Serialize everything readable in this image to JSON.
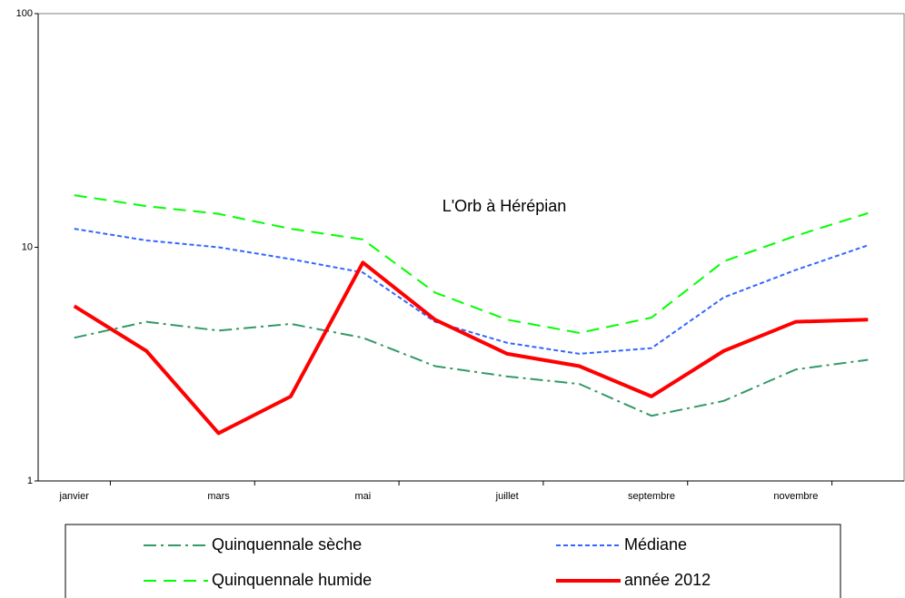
{
  "chart_data": {
    "type": "line",
    "title": "L'Orb à Hérépian",
    "categories": [
      "janvier",
      null,
      "mars",
      null,
      "mai",
      null,
      "juillet",
      null,
      "septembre",
      null,
      "novembre",
      null
    ],
    "log_scale": true,
    "ylim": [
      1,
      100
    ],
    "yticks": [
      1,
      10,
      100
    ],
    "grid": false,
    "series": [
      {
        "name": "Quinquennale sèche",
        "color": "#339966",
        "values": [
          4.1,
          4.8,
          4.4,
          4.7,
          4.1,
          3.1,
          2.8,
          2.6,
          1.9,
          2.2,
          3.0,
          3.3
        ]
      },
      {
        "name": "Médiane",
        "color": "#3366ff",
        "values": [
          12.0,
          10.7,
          10.0,
          8.9,
          7.8,
          4.8,
          3.9,
          3.5,
          3.7,
          6.1,
          8.0,
          10.2
        ]
      },
      {
        "name": "Quinquennale humide",
        "color": "#00ff00",
        "values": [
          16.7,
          15.0,
          13.9,
          12.0,
          10.8,
          6.4,
          4.9,
          4.3,
          5.0,
          8.7,
          11.2,
          14.0
        ]
      },
      {
        "name": "année 2012",
        "color": "#ff0000",
        "values": [
          5.6,
          3.6,
          1.6,
          2.3,
          8.6,
          4.9,
          3.5,
          3.1,
          2.3,
          3.6,
          4.8,
          4.9
        ]
      }
    ]
  }
}
